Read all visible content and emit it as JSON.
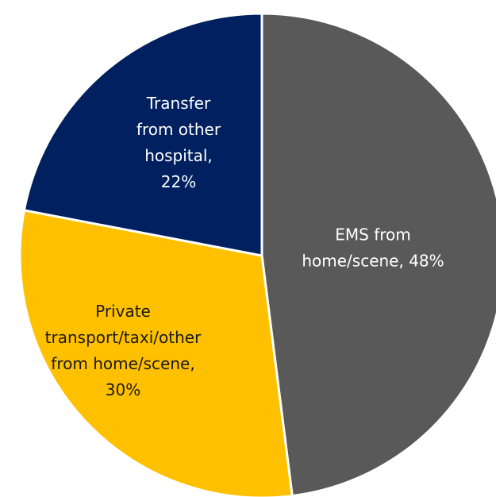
{
  "chart_data": {
    "type": "pie",
    "categories": [
      "EMS from home/scene",
      "Private transport/taxi/other from home/scene",
      "Transfer from other hospital"
    ],
    "values": [
      48,
      30,
      22
    ],
    "colors": [
      "#595959",
      "#ffc000",
      "#002060"
    ],
    "label_lines": [
      [
        "EMS from",
        "home/scene, 48%"
      ],
      [
        "Private",
        "transport/taxi/other",
        "from home/scene,",
        "30%"
      ],
      [
        "Transfer",
        "from other",
        "hospital,",
        "22%"
      ]
    ]
  }
}
